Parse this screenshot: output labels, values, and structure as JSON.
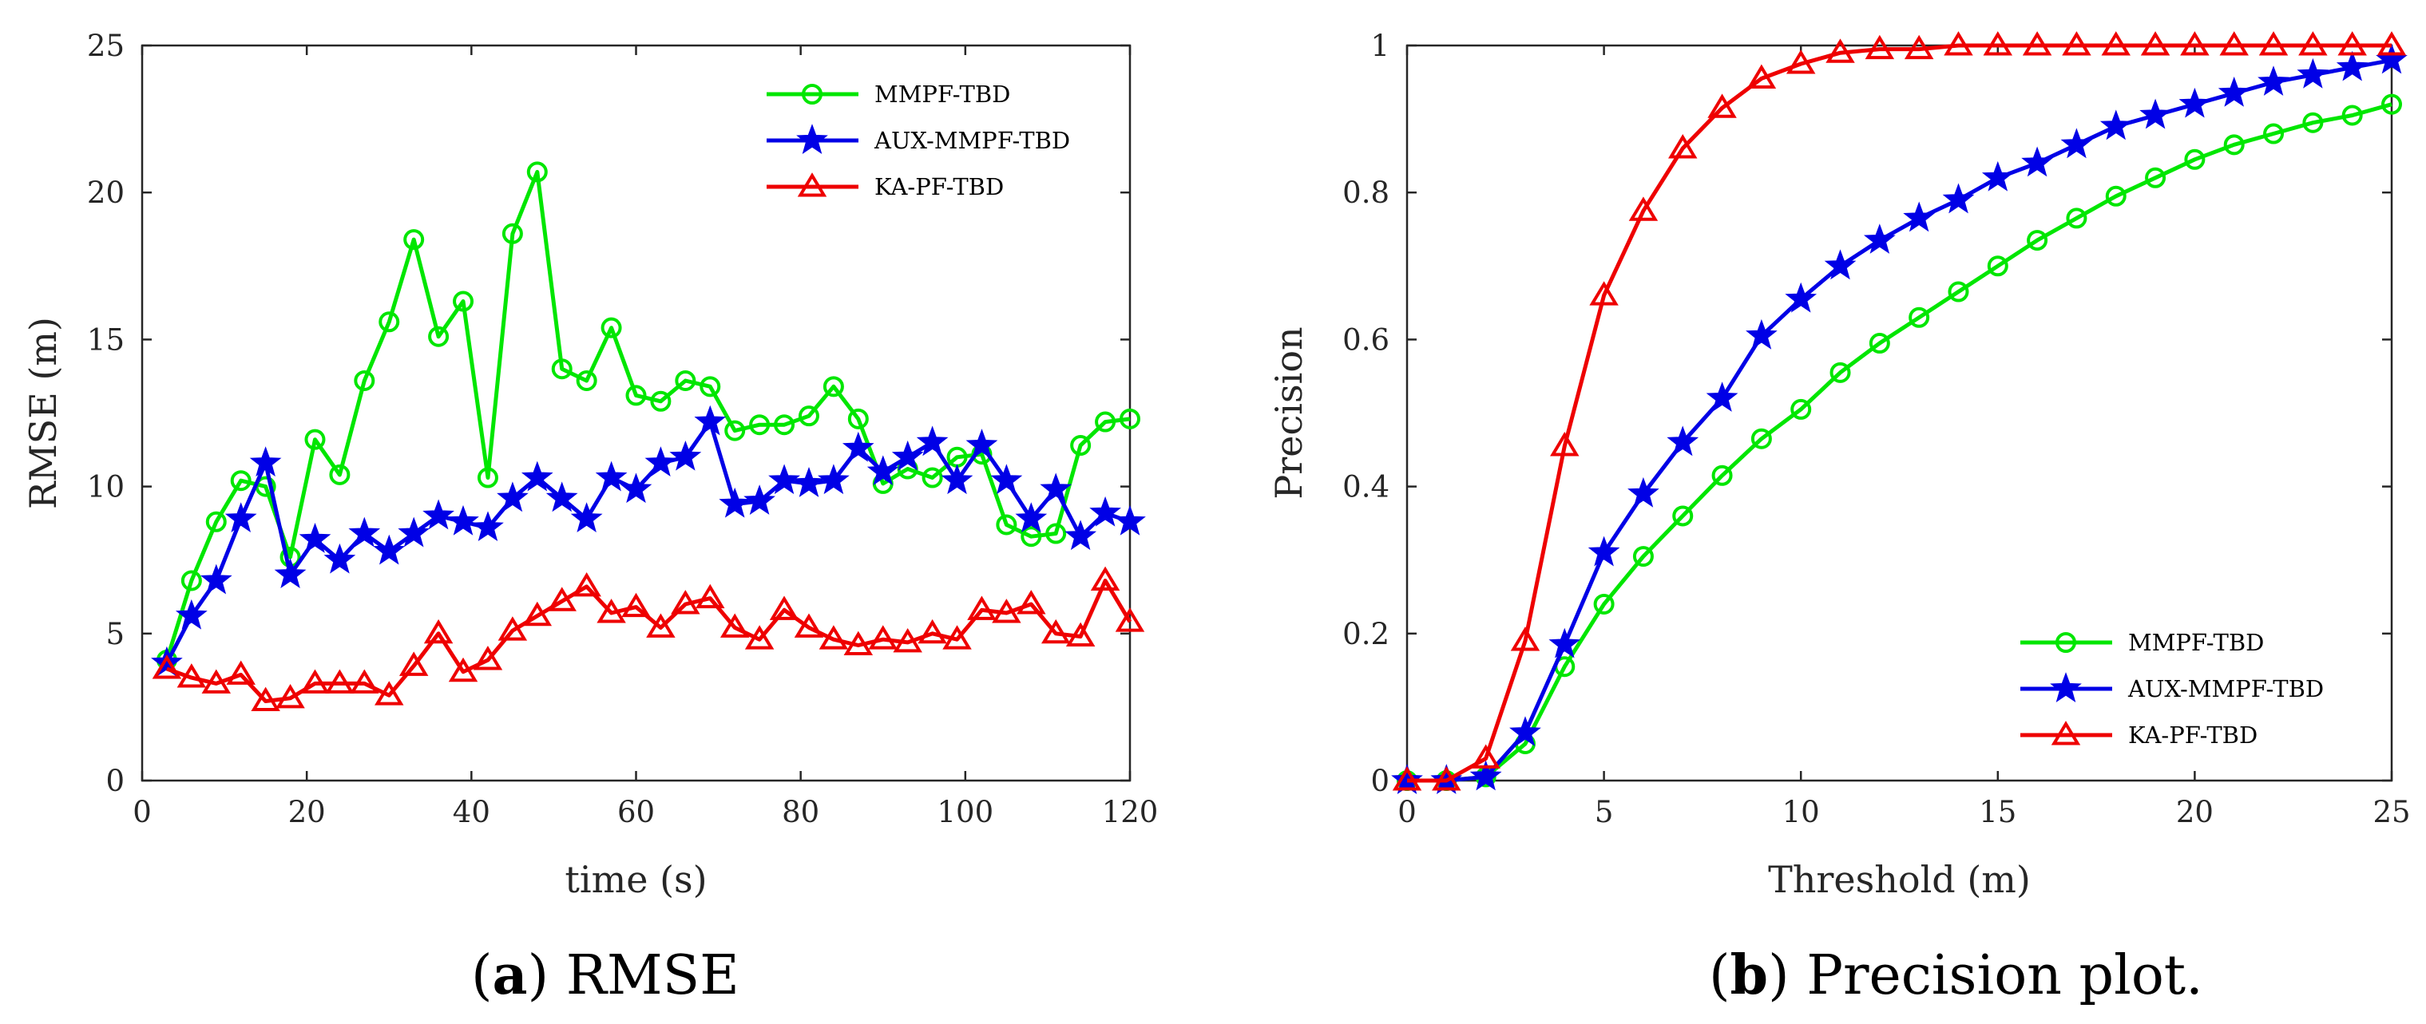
{
  "chart_data": [
    {
      "type": "line",
      "title": "",
      "xlabel": "time (s)",
      "ylabel": "RMSE (m)",
      "xlim": [
        0,
        120
      ],
      "ylim": [
        0,
        25
      ],
      "xticks": [
        0,
        20,
        40,
        60,
        80,
        100,
        120
      ],
      "yticks": [
        0,
        5,
        10,
        15,
        20,
        25
      ],
      "grid": false,
      "legend_position": "top-right",
      "x": [
        3,
        6,
        9,
        12,
        15,
        18,
        21,
        24,
        27,
        30,
        33,
        36,
        39,
        42,
        45,
        48,
        51,
        54,
        57,
        60,
        63,
        66,
        69,
        72,
        75,
        78,
        81,
        84,
        87,
        90,
        93,
        96,
        99,
        102,
        105,
        108,
        111,
        114,
        117,
        120
      ],
      "series": [
        {
          "name": "MMPF-TBD",
          "color": "#00e600",
          "marker": "circle",
          "values": [
            4.1,
            6.8,
            8.8,
            10.2,
            10.0,
            7.6,
            11.6,
            10.4,
            13.6,
            15.6,
            18.4,
            15.1,
            16.3,
            10.3,
            18.6,
            20.7,
            14.0,
            13.6,
            15.4,
            13.1,
            12.9,
            13.6,
            13.4,
            11.9,
            12.1,
            12.1,
            12.4,
            13.4,
            12.3,
            10.1,
            10.6,
            10.3,
            11.0,
            11.1,
            8.7,
            8.3,
            8.4,
            11.4,
            12.2,
            12.3
          ]
        },
        {
          "name": "AUX-MMPF-TBD",
          "color": "#0000e6",
          "marker": "star",
          "values": [
            4.0,
            5.6,
            6.8,
            8.9,
            10.8,
            7.0,
            8.2,
            7.5,
            8.4,
            7.8,
            8.4,
            9.0,
            8.8,
            8.6,
            9.6,
            10.3,
            9.6,
            8.9,
            10.3,
            9.9,
            10.8,
            11.0,
            12.2,
            9.4,
            9.5,
            10.2,
            10.1,
            10.2,
            11.3,
            10.5,
            11.0,
            11.5,
            10.2,
            11.4,
            10.2,
            8.9,
            9.9,
            8.3,
            9.1,
            8.8
          ]
        },
        {
          "name": "KA-PF-TBD",
          "color": "#ee0000",
          "marker": "triangle",
          "values": [
            3.8,
            3.5,
            3.3,
            3.6,
            2.7,
            2.8,
            3.3,
            3.3,
            3.3,
            2.9,
            3.9,
            5.0,
            3.7,
            4.1,
            5.1,
            5.6,
            6.1,
            6.6,
            5.7,
            5.9,
            5.2,
            6.0,
            6.2,
            5.2,
            4.8,
            5.8,
            5.2,
            4.8,
            4.6,
            4.8,
            4.7,
            5.0,
            4.8,
            5.8,
            5.7,
            6.0,
            5.0,
            4.9,
            6.8,
            5.4
          ]
        }
      ],
      "caption": {
        "label": "a",
        "text": ") RMSE",
        "open": "("
      }
    },
    {
      "type": "line",
      "title": "",
      "xlabel": "Threshold (m)",
      "ylabel": "Precision",
      "xlim": [
        0,
        25
      ],
      "ylim": [
        0,
        1
      ],
      "xticks": [
        0,
        5,
        10,
        15,
        20,
        25
      ],
      "yticks": [
        0,
        0.2,
        0.4,
        0.6,
        0.8,
        1
      ],
      "grid": false,
      "legend_position": "bottom-right",
      "x": [
        0,
        1,
        2,
        3,
        4,
        5,
        6,
        7,
        8,
        9,
        10,
        11,
        12,
        13,
        14,
        15,
        16,
        17,
        18,
        19,
        20,
        21,
        22,
        23,
        24,
        25
      ],
      "series": [
        {
          "name": "MMPF-TBD",
          "color": "#00e600",
          "marker": "circle",
          "values": [
            0,
            0,
            0.005,
            0.05,
            0.155,
            0.24,
            0.305,
            0.36,
            0.415,
            0.465,
            0.505,
            0.555,
            0.595,
            0.63,
            0.665,
            0.7,
            0.735,
            0.765,
            0.795,
            0.82,
            0.845,
            0.865,
            0.88,
            0.895,
            0.905,
            0.92
          ]
        },
        {
          "name": "AUX-MMPF-TBD",
          "color": "#0000e6",
          "marker": "star",
          "values": [
            0,
            0,
            0.005,
            0.065,
            0.185,
            0.31,
            0.39,
            0.46,
            0.52,
            0.605,
            0.655,
            0.7,
            0.735,
            0.765,
            0.79,
            0.82,
            0.84,
            0.865,
            0.89,
            0.905,
            0.92,
            0.935,
            0.95,
            0.96,
            0.97,
            0.98
          ]
        },
        {
          "name": "KA-PF-TBD",
          "color": "#ee0000",
          "marker": "triangle",
          "values": [
            0,
            0,
            0.03,
            0.19,
            0.455,
            0.66,
            0.775,
            0.86,
            0.915,
            0.955,
            0.975,
            0.99,
            0.995,
            0.995,
            1,
            1,
            1,
            1,
            1,
            1,
            1,
            1,
            1,
            1,
            1,
            1
          ]
        }
      ],
      "caption": {
        "label": "b",
        "text": ") Precision plot.",
        "open": "("
      }
    }
  ]
}
